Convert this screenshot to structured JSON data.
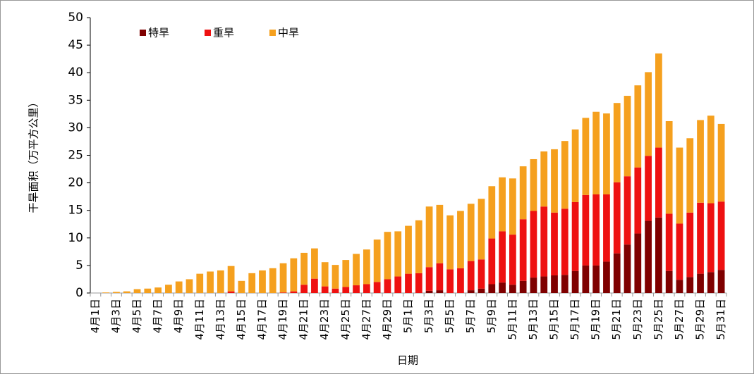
{
  "chart_data": {
    "type": "bar",
    "stacked": true,
    "y_label": "干旱面积（万平方公里）",
    "x_label": "日期",
    "categories": [
      "4月1日",
      null,
      "4月3日",
      null,
      "4月5日",
      null,
      "4月7日",
      null,
      "4月9日",
      null,
      "4月11日",
      null,
      "4月13日",
      null,
      "4月15日",
      null,
      "4月17日",
      null,
      "4月19日",
      null,
      "4月21日",
      null,
      "4月23日",
      null,
      "4月25日",
      null,
      "4月27日",
      null,
      "4月29日",
      null,
      "5月1日",
      null,
      "5月3日",
      null,
      "5月5日",
      null,
      "5月7日",
      null,
      "5月9日",
      null,
      "5月11日",
      null,
      "5月13日",
      null,
      "5月15日",
      null,
      "5月17日",
      null,
      "5月19日",
      null,
      "5月21日",
      null,
      "5月23日",
      null,
      "5月25日",
      null,
      "5月27日",
      null,
      "5月29日",
      null,
      "5月31日"
    ],
    "series": [
      {
        "name": "特旱",
        "color": "#7f0000",
        "values": [
          0,
          0,
          0,
          0,
          0,
          0,
          0,
          0,
          0,
          0,
          0,
          0,
          0,
          0,
          0,
          0,
          0,
          0,
          0,
          0,
          0,
          0,
          0,
          0,
          0,
          0,
          0,
          0,
          0,
          0,
          0,
          0,
          0.4,
          0.5,
          0,
          0,
          0.5,
          0.8,
          1.6,
          1.9,
          1.5,
          2.2,
          2.8,
          3.0,
          3.2,
          3.3,
          4.0,
          5.0,
          5.0,
          5.7,
          7.2,
          8.8,
          10.8,
          13.1,
          13.7,
          4.0,
          2.4,
          2.9,
          3.5,
          3.8,
          4.2
        ]
      },
      {
        "name": "重旱",
        "color": "#ee1111",
        "values": [
          0,
          0,
          0,
          0,
          0,
          0,
          0,
          0,
          0,
          0,
          0,
          0,
          0,
          0.3,
          0,
          0,
          0,
          0,
          0.1,
          0.3,
          1.5,
          2.6,
          1.2,
          0.8,
          1.1,
          1.4,
          1.6,
          2.0,
          2.5,
          3.0,
          3.5,
          3.6,
          4.3,
          4.9,
          4.3,
          4.5,
          5.3,
          5.3,
          8.3,
          9.3,
          9.1,
          11.2,
          12.1,
          12.7,
          11.4,
          12.0,
          12.5,
          12.8,
          12.9,
          12.2,
          12.9,
          12.4,
          12.0,
          11.8,
          12.7,
          10.4,
          10.2,
          11.7,
          12.9,
          12.5,
          12.4
        ]
      },
      {
        "name": "中旱",
        "color": "#f5a01e",
        "values": [
          0,
          0.1,
          0.2,
          0.3,
          0.7,
          0.8,
          1.0,
          1.5,
          2.1,
          2.5,
          3.5,
          3.9,
          4.1,
          4.6,
          2.2,
          3.6,
          4.1,
          4.5,
          5.3,
          6.0,
          5.8,
          5.5,
          4.4,
          4.3,
          4.9,
          5.7,
          6.3,
          7.7,
          8.6,
          8.2,
          8.7,
          9.6,
          11.0,
          10.6,
          9.8,
          10.4,
          10.4,
          11.0,
          9.5,
          9.8,
          10.2,
          9.6,
          9.4,
          10.0,
          11.5,
          12.3,
          13.2,
          14.0,
          15.0,
          14.7,
          14.4,
          14.6,
          14.9,
          15.2,
          17.1,
          16.8,
          13.8,
          13.5,
          15.0,
          15.9,
          14.1
        ]
      }
    ],
    "ylim": [
      0,
      50
    ],
    "yticks": [
      0,
      5,
      10,
      15,
      20,
      25,
      30,
      35,
      40,
      45,
      50
    ],
    "legend": "top-left"
  }
}
